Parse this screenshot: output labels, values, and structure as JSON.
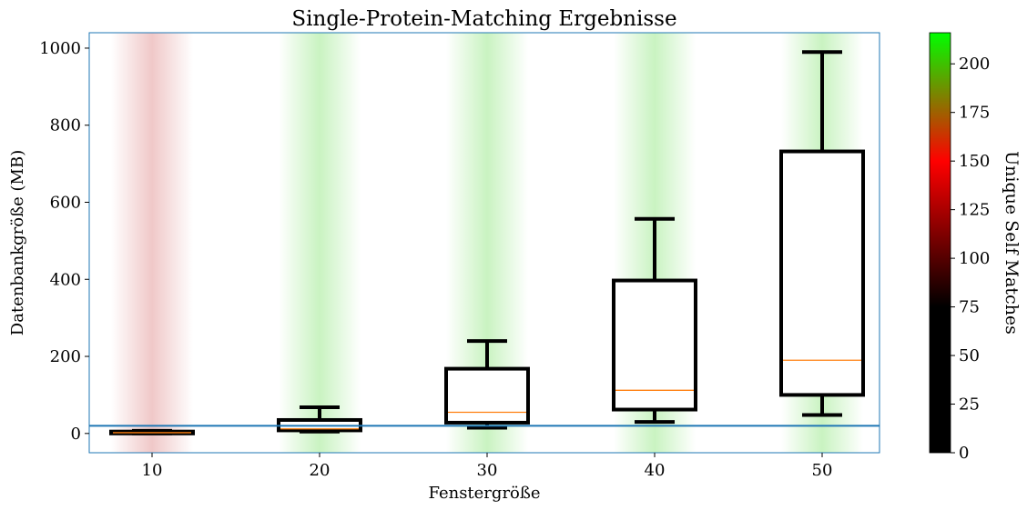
{
  "chart_data": {
    "type": "box",
    "title": "Single-Protein-Matching Ergebnisse",
    "xlabel": "Fenstergröße",
    "ylabel": "Datenbankgröße (MB)",
    "ylim": [
      -50,
      1040
    ],
    "yticks": [
      0,
      200,
      400,
      600,
      800,
      1000
    ],
    "categories": [
      "10",
      "20",
      "30",
      "40",
      "50"
    ],
    "boxes": [
      {
        "category": "10",
        "whislo": 0,
        "q1": 0,
        "med": 2,
        "q3": 5,
        "whishi": 7,
        "unique_self_matches": 85,
        "band_color": "#f0c8c8"
      },
      {
        "category": "20",
        "whislo": 5,
        "q1": 8,
        "med": 12,
        "q3": 35,
        "whishi": 68,
        "unique_self_matches": 200,
        "band_color": "#c9f3c1"
      },
      {
        "category": "30",
        "whislo": 15,
        "q1": 28,
        "med": 55,
        "q3": 168,
        "whishi": 240,
        "unique_self_matches": 200,
        "band_color": "#c9f3c1"
      },
      {
        "category": "40",
        "whislo": 30,
        "q1": 62,
        "med": 112,
        "q3": 397,
        "whishi": 557,
        "unique_self_matches": 200,
        "band_color": "#c9f3c1"
      },
      {
        "category": "50",
        "whislo": 48,
        "q1": 100,
        "med": 190,
        "q3": 732,
        "whishi": 990,
        "unique_self_matches": 200,
        "band_color": "#c9f3c1"
      }
    ],
    "reference_line": {
      "y": 20,
      "color": "#1f77b4"
    },
    "colorbar": {
      "label": "Unique Self Matches",
      "range": [
        0,
        216
      ],
      "ticks": [
        0,
        25,
        50,
        75,
        100,
        125,
        150,
        175,
        200
      ],
      "gradient_stops": [
        {
          "value": 0,
          "color": "#000000"
        },
        {
          "value": 75,
          "color": "#000000"
        },
        {
          "value": 150,
          "color": "#ff0000"
        },
        {
          "value": 216,
          "color": "#00ff00"
        }
      ]
    },
    "grid": false,
    "legend": "none",
    "median_color": "#ff7f0e",
    "box_color": "#000000"
  }
}
